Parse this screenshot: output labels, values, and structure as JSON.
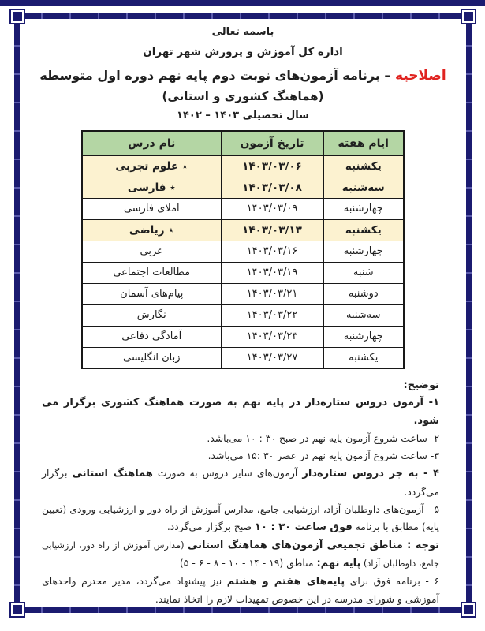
{
  "header": {
    "bismillah": "باسمه تعالی",
    "department": "اداره کل آموزش و پرورش شهر تهران",
    "correction_label": "اصلاحیه",
    "title_rest": " – برنامه آزمون‌های نوبت دوم پایه نهم دوره اول متوسطه",
    "subtitle": "(هماهنگ کشوری و استانی)",
    "academic_year": "سال تحصیلی ۱۴۰۳ – ۱۴۰۲"
  },
  "table": {
    "headers": [
      "ایام هفته",
      "تاریخ آزمون",
      "نام درس"
    ],
    "rows": [
      {
        "day": "یکشنبه",
        "date": "۱۴۰۳/۰۳/۰۶",
        "course": "٭ علوم تجربی",
        "highlight": true
      },
      {
        "day": "سه‌شنبه",
        "date": "۱۴۰۳/۰۳/۰۸",
        "course": "٭ فارسی",
        "highlight": true
      },
      {
        "day": "چهارشنبه",
        "date": "۱۴۰۳/۰۳/۰۹",
        "course": "املای فارسی",
        "highlight": false
      },
      {
        "day": "یکشنبه",
        "date": "۱۴۰۳/۰۳/۱۳",
        "course": "٭ ریاضی",
        "highlight": true
      },
      {
        "day": "چهارشنبه",
        "date": "۱۴۰۳/۰۳/۱۶",
        "course": "عربی",
        "highlight": false
      },
      {
        "day": "شنبه",
        "date": "۱۴۰۳/۰۳/۱۹",
        "course": "مطالعات اجتماعی",
        "highlight": false
      },
      {
        "day": "دوشنبه",
        "date": "۱۴۰۳/۰۳/۲۱",
        "course": "پیام‌های آسمان",
        "highlight": false
      },
      {
        "day": "سه‌شنبه",
        "date": "۱۴۰۳/۰۳/۲۲",
        "course": "نگارش",
        "highlight": false
      },
      {
        "day": "چهارشنبه",
        "date": "۱۴۰۳/۰۳/۲۳",
        "course": "آمادگی دفاعی",
        "highlight": false
      },
      {
        "day": "یکشنبه",
        "date": "۱۴۰۳/۰۳/۲۷",
        "course": "زبان انگلیسی",
        "highlight": false
      }
    ]
  },
  "notes": {
    "heading": "توضیح:",
    "items": [
      [
        {
          "text": "۱- آزمون دروس ستاره‌دار در پایه نهم به صورت هماهنگ کشوری برگزار می شود.",
          "bold": true
        }
      ],
      [
        {
          "text": "۲- ساعت شروع آزمون پایه نهم در صبح ۳۰ : ۱۰ می‌باشد.",
          "bold": false
        }
      ],
      [
        {
          "text": "۳- ساعت شروع آزمون پایه نهم در عصر ۳۰ :۱۵ می‌باشد.",
          "bold": false
        }
      ],
      [
        {
          "text": "۴ - به جز دروس ستاره‌دار",
          "bold": true
        },
        {
          "text": " آزمون‌های سایر دروس به صورت ",
          "bold": false
        },
        {
          "text": "هماهنگ استانی",
          "bold": true
        },
        {
          "text": " برگزار می‌گردد.",
          "bold": false
        }
      ],
      [
        {
          "text": "۵ - آزمون‌های داوطلبان آزاد، ارزشیابی جامع، مدارس آموزش از راه دور و ارزشیابی ورودی (تعیین پایه) مطابق با برنامه ",
          "bold": false
        },
        {
          "text": "فوق ساعت ۳۰ : ۱۰",
          "bold": true
        },
        {
          "text": " صبح برگزار می‌گردد.",
          "bold": false
        }
      ],
      [
        {
          "text": "توجه : مناطق تجمیعی آزمون‌های هماهنگ استانی",
          "bold": true
        },
        {
          "text": " (مدارس آموزش از راه دور، ارزشیابی جامع، داوطلبان آزاد) ",
          "bold": false,
          "small": true
        },
        {
          "text": "پایه نهم:",
          "bold": true
        },
        {
          "text": " مناطق (۱۹ - ۱۴ - ۱۰ - ۸ - ۶ - ۵)",
          "bold": false
        }
      ],
      [
        {
          "text": "۶ - برنامه فوق برای ",
          "bold": false
        },
        {
          "text": "پایه‌های هفتم و هشتم",
          "bold": true
        },
        {
          "text": " نیز پیشنهاد می‌گردد، مدیر محترم واحدهای آموزشی و شورای مدرسه در این خصوص تمهیدات لازم را اتخاذ نمایند.",
          "bold": false
        }
      ]
    ]
  },
  "colors": {
    "frame_navy": "#1b1b70",
    "header_green": "#b4d6a4",
    "highlight_cream": "#fcf2d0",
    "correction_red": "#e02320"
  }
}
